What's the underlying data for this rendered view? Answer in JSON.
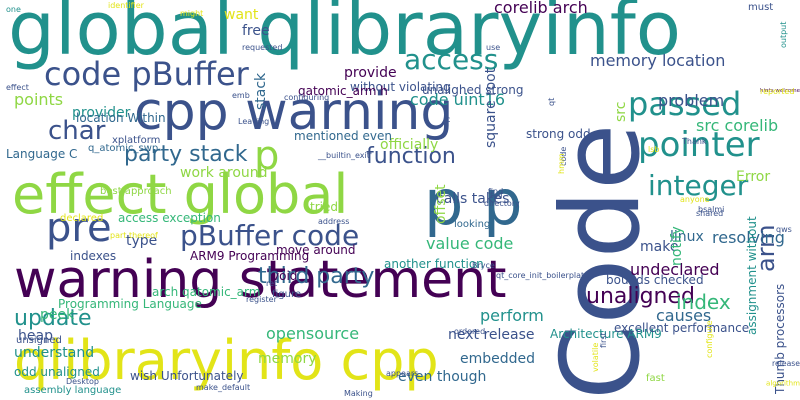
{
  "palette": {
    "purple": "#440154",
    "indigo": "#3b528b",
    "blue": "#31688e",
    "teal": "#21918c",
    "green": "#35b779",
    "lime": "#8fd744",
    "yellow": "#e2e418",
    "gold": "#fde725",
    "background": "#ffffff"
  },
  "words": [
    {
      "text": "global qlibraryinfo",
      "color": "teal"
    },
    {
      "text": "Code",
      "color": "indigo"
    },
    {
      "text": "cpp warning",
      "color": "indigo"
    },
    {
      "text": "effect global",
      "color": "lime"
    },
    {
      "text": "warning statement",
      "color": "purple"
    },
    {
      "text": "qlibraryinfo cpp",
      "color": "yellow"
    },
    {
      "text": "p p",
      "color": "blue"
    },
    {
      "text": "code pBuffer",
      "color": "indigo"
    },
    {
      "text": "passed",
      "color": "teal"
    },
    {
      "text": "pointer",
      "color": "teal"
    },
    {
      "text": "p",
      "color": "lime"
    },
    {
      "text": "pre",
      "color": "indigo"
    },
    {
      "text": "pBuffer code",
      "color": "indigo"
    },
    {
      "text": "access",
      "color": "teal"
    },
    {
      "text": "function",
      "color": "indigo"
    },
    {
      "text": "integer",
      "color": "teal"
    },
    {
      "text": "party stack",
      "color": "blue"
    },
    {
      "text": "char",
      "color": "indigo"
    },
    {
      "text": "third party",
      "color": "blue"
    },
    {
      "text": "unaligned",
      "color": "purple"
    },
    {
      "text": "update",
      "color": "teal"
    },
    {
      "text": "index",
      "color": "green"
    },
    {
      "text": "arm",
      "color": "indigo"
    },
    {
      "text": "corelib arch",
      "color": "purple"
    },
    {
      "text": "memory location",
      "color": "indigo"
    },
    {
      "text": "code uint16",
      "color": "teal"
    },
    {
      "text": "problem",
      "color": "indigo"
    },
    {
      "text": "src corelib",
      "color": "green"
    },
    {
      "text": "value code",
      "color": "green"
    },
    {
      "text": "resolving",
      "color": "blue"
    },
    {
      "text": "undeclared",
      "color": "purple"
    },
    {
      "text": "causes",
      "color": "blue"
    },
    {
      "text": "perform",
      "color": "teal"
    },
    {
      "text": "peek",
      "color": "green"
    },
    {
      "text": "embedded",
      "color": "blue"
    },
    {
      "text": "heap",
      "color": "indigo"
    },
    {
      "text": "opensource",
      "color": "green"
    },
    {
      "text": "next release",
      "color": "indigo"
    },
    {
      "text": "memory",
      "color": "lime"
    },
    {
      "text": "move around",
      "color": "purple"
    },
    {
      "text": "make",
      "color": "indigo"
    },
    {
      "text": "linux",
      "color": "blue"
    },
    {
      "text": "notify",
      "color": "green"
    },
    {
      "text": "type",
      "color": "indigo"
    },
    {
      "text": "void",
      "color": "purple"
    },
    {
      "text": "points",
      "color": "lime"
    },
    {
      "text": "provider",
      "color": "teal"
    },
    {
      "text": "access exception",
      "color": "green"
    },
    {
      "text": "indexes",
      "color": "indigo"
    },
    {
      "text": "understand",
      "color": "teal"
    },
    {
      "text": "odd unaligned",
      "color": "teal"
    },
    {
      "text": "wish Unfortunately",
      "color": "indigo"
    },
    {
      "text": "even though",
      "color": "blue"
    },
    {
      "text": "Architecture ARM9",
      "color": "teal"
    },
    {
      "text": "Programming Language",
      "color": "green"
    },
    {
      "text": "ARM9 Programming",
      "color": "purple"
    },
    {
      "text": "arch qatomic_arm",
      "color": "green"
    },
    {
      "text": "another function",
      "color": "teal"
    },
    {
      "text": "bounds checked",
      "color": "indigo"
    },
    {
      "text": "excellent performance",
      "color": "indigo"
    },
    {
      "text": "want",
      "color": "yellow"
    },
    {
      "text": "free",
      "color": "indigo"
    },
    {
      "text": "provide",
      "color": "purple"
    },
    {
      "text": "without violating",
      "color": "indigo"
    },
    {
      "text": "unalighed strong",
      "color": "indigo"
    },
    {
      "text": "qatomic_arm h",
      "color": "purple"
    },
    {
      "text": "location Within",
      "color": "blue"
    },
    {
      "text": "Language C",
      "color": "blue"
    },
    {
      "text": "officially",
      "color": "lime"
    },
    {
      "text": "mentioned even",
      "color": "blue"
    },
    {
      "text": "strong odd",
      "color": "indigo"
    },
    {
      "text": "calls takes",
      "color": "indigo"
    },
    {
      "text": "tried",
      "color": "lime"
    },
    {
      "text": "work around",
      "color": "lime"
    },
    {
      "text": "Error",
      "color": "lime"
    },
    {
      "text": "square root",
      "color": "indigo"
    },
    {
      "text": "src",
      "color": "lime"
    },
    {
      "text": "offset",
      "color": "lime"
    },
    {
      "text": "stack",
      "color": "blue"
    },
    {
      "text": "one",
      "color": "teal"
    },
    {
      "text": "requested",
      "color": "indigo"
    },
    {
      "text": "configuring",
      "color": "indigo"
    },
    {
      "text": "xplatform",
      "color": "indigo"
    },
    {
      "text": "best approach",
      "color": "lime"
    },
    {
      "text": "q_atomic_swp",
      "color": "blue"
    },
    {
      "text": "declared",
      "color": "yellow"
    },
    {
      "text": "unsigned",
      "color": "indigo"
    },
    {
      "text": "assembly language",
      "color": "teal"
    },
    {
      "text": "figure",
      "color": "indigo"
    },
    {
      "text": "fast",
      "color": "lime"
    },
    {
      "text": "Thumb processors",
      "color": "indigo"
    },
    {
      "text": "assignment without",
      "color": "teal"
    },
    {
      "text": "looking",
      "color": "blue"
    },
    {
      "text": "hints welcome",
      "color": "purple"
    },
    {
      "text": "must",
      "color": "indigo"
    },
    {
      "text": "output",
      "color": "teal"
    },
    {
      "text": "make_default",
      "color": "indigo"
    },
    {
      "text": "Desktop",
      "color": "indigo"
    },
    {
      "text": "Making",
      "color": "indigo"
    },
    {
      "text": "appears",
      "color": "indigo"
    },
    {
      "text": "ordered",
      "color": "indigo"
    },
    {
      "text": "register'",
      "color": "indigo"
    },
    {
      "text": "qt_core_init_boilerplate",
      "color": "indigo"
    },
    {
      "text": "Bryce",
      "color": "indigo"
    },
    {
      "text": "first",
      "color": "indigo"
    },
    {
      "text": "volatile",
      "color": "yellow"
    },
    {
      "text": "configure",
      "color": "yellow"
    },
    {
      "text": "algorithm",
      "color": "yellow"
    },
    {
      "text": "release",
      "color": "indigo"
    },
    {
      "text": "qws",
      "color": "indigo"
    },
    {
      "text": "anyone",
      "color": "yellow"
    },
    {
      "text": "shared",
      "color": "indigo"
    },
    {
      "text": "bsalmi",
      "color": "indigo"
    },
    {
      "text": "find",
      "color": "indigo"
    },
    {
      "text": "tell",
      "color": "indigo"
    },
    {
      "text": "directory",
      "color": "indigo"
    },
    {
      "text": "__builtin_exit'",
      "color": "indigo"
    },
    {
      "text": "address",
      "color": "indigo"
    },
    {
      "text": "part thereof",
      "color": "yellow"
    },
    {
      "text": "reported",
      "color": "yellow"
    },
    {
      "text": "Thank",
      "color": "indigo"
    },
    {
      "text": "Leaving",
      "color": "indigo"
    },
    {
      "text": "ret'",
      "color": "indigo"
    },
    {
      "text": "might",
      "color": "yellow"
    },
    {
      "text": "identifier",
      "color": "yellow"
    },
    {
      "text": "use",
      "color": "indigo"
    },
    {
      "text": "emb",
      "color": "indigo"
    },
    {
      "text": "effect",
      "color": "indigo"
    },
    {
      "text": "c",
      "color": "indigo"
    },
    {
      "text": "qt",
      "color": "indigo"
    },
    {
      "text": "lsb",
      "color": "yellow"
    },
    {
      "text": "code",
      "color": "indigo"
    },
    {
      "text": "hmm",
      "color": "yellow"
    },
    {
      "text": "bone",
      "color": "yellow"
    }
  ]
}
